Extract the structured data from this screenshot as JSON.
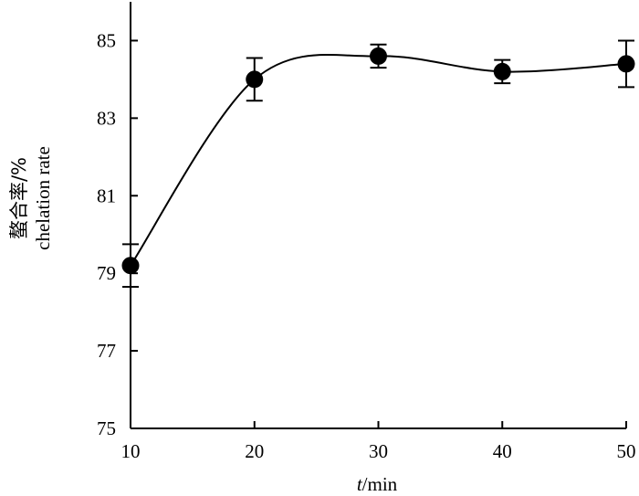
{
  "chart_data": {
    "type": "line",
    "title": "",
    "xlabel_var": "t",
    "xlabel_unit": "/min",
    "ylabel_cn": "螯合率/%",
    "ylabel_en": "chelation rate",
    "xlim": [
      10,
      50
    ],
    "ylim": [
      75,
      86
    ],
    "x_ticks": [
      10,
      20,
      30,
      40,
      50
    ],
    "y_ticks": [
      75,
      77,
      79,
      81,
      83,
      85
    ],
    "grid": false,
    "legend": "none",
    "series": [
      {
        "x": [
          10,
          20,
          30,
          40,
          50
        ],
        "y": [
          79.2,
          84.0,
          84.6,
          84.2,
          84.4
        ],
        "error": [
          0.55,
          0.55,
          0.3,
          0.3,
          0.6
        ],
        "marker": "filled-circle",
        "smooth_line": true,
        "color": "#000000"
      }
    ]
  }
}
